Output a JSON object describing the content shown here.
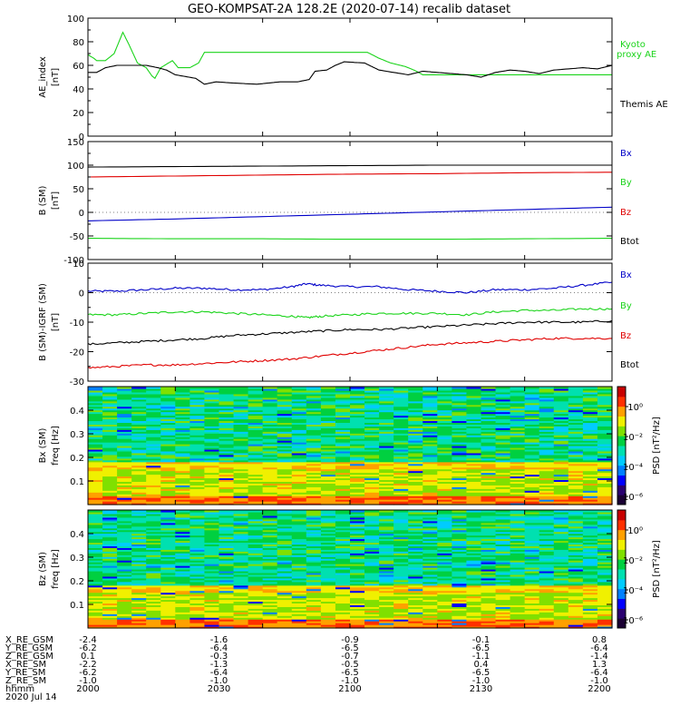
{
  "title": "GEO-KOMPSAT-2A 128.2E (2020-07-14) recalib dataset",
  "colors": {
    "black": "#000000",
    "red": "#e00000",
    "green": "#1bd41b",
    "blue": "#0000c8",
    "kyoto": "#1bd41b",
    "colorbar": [
      "#1a0033",
      "#2a0070",
      "#0000ff",
      "#0080ff",
      "#00ccff",
      "#00e0b0",
      "#00d040",
      "#80e000",
      "#f0f000",
      "#ffa000",
      "#ff3000",
      "#c80000"
    ]
  },
  "chart_data": [
    {
      "type": "line",
      "id": "ae",
      "ylabel": "AE_index [nT]",
      "ylim": [
        0,
        100
      ],
      "yticks": [
        "0",
        "20",
        "40",
        "60",
        "80",
        "100"
      ],
      "legend": [
        {
          "label": "Kyoto proxy AE",
          "color": "#1bd41b"
        },
        {
          "label": "Themis AE",
          "color": "#000000"
        }
      ],
      "series": [
        {
          "name": "Kyoto proxy AE",
          "color": "#1bd41b",
          "x": [
            0,
            2,
            3,
            6,
            9,
            12,
            14,
            17,
            20,
            22,
            23,
            25,
            29,
            31,
            35,
            38,
            40,
            48,
            70,
            82,
            96,
            100,
            104,
            109,
            112,
            115,
            120,
            150,
            160,
            180
          ],
          "y": [
            69,
            66,
            64,
            64,
            70,
            88,
            78,
            62,
            58,
            51,
            49,
            58,
            64,
            58,
            58,
            62,
            71,
            71,
            71,
            71,
            71,
            66,
            62,
            59,
            56,
            52,
            52,
            52,
            52,
            52
          ]
        },
        {
          "name": "Themis AE",
          "color": "#000000",
          "x": [
            0,
            3,
            6,
            10,
            13,
            20,
            24,
            27,
            30,
            37,
            40,
            44,
            50,
            58,
            62,
            66,
            72,
            76,
            78,
            82,
            85,
            88,
            95,
            100,
            110,
            115,
            120,
            125,
            130,
            135,
            140,
            145,
            150,
            155,
            160,
            170,
            175,
            180
          ],
          "y": [
            54,
            54,
            58,
            60,
            60,
            60,
            58,
            56,
            52,
            49,
            44,
            46,
            45,
            44,
            45,
            46,
            46,
            48,
            55,
            56,
            60,
            63,
            62,
            56,
            52,
            55,
            54,
            53,
            52,
            50,
            54,
            56,
            55,
            53,
            56,
            58,
            57,
            60
          ]
        }
      ]
    },
    {
      "type": "line",
      "id": "bsm",
      "ylabel": "B (SM) [nT]",
      "ylim": [
        -100,
        150
      ],
      "yticks": [
        "-100",
        "-50",
        "0",
        "50",
        "100",
        "150"
      ],
      "legend": [
        {
          "label": "Bx",
          "color": "#0000c8"
        },
        {
          "label": "By",
          "color": "#1bd41b"
        },
        {
          "label": "Bz",
          "color": "#e00000"
        },
        {
          "label": "Btot",
          "color": "#000000"
        }
      ],
      "series": [
        {
          "name": "Btot",
          "color": "#000000",
          "x": [
            0,
            30,
            60,
            90,
            120,
            150,
            180
          ],
          "y": [
            96,
            97,
            98,
            99,
            100,
            100,
            100
          ]
        },
        {
          "name": "Bz",
          "color": "#e00000",
          "x": [
            0,
            30,
            60,
            90,
            120,
            150,
            180
          ],
          "y": [
            75,
            77,
            79,
            81,
            82,
            84,
            85
          ]
        },
        {
          "name": "Bx",
          "color": "#0000c8",
          "x": [
            0,
            30,
            60,
            90,
            120,
            150,
            180
          ],
          "y": [
            -18,
            -14,
            -9,
            -4,
            1,
            6,
            11
          ]
        },
        {
          "name": "By",
          "color": "#1bd41b",
          "x": [
            0,
            30,
            60,
            90,
            120,
            150,
            180
          ],
          "y": [
            -55,
            -56,
            -56,
            -57,
            -57,
            -56,
            -55
          ]
        }
      ]
    },
    {
      "type": "line",
      "id": "bdiff",
      "ylabel": "B (SM)-IGRF (SM) [nT]",
      "ylim": [
        -30,
        10
      ],
      "yticks": [
        "-30",
        "-20",
        "-10",
        "0",
        "10"
      ],
      "legend": [
        {
          "label": "Bx",
          "color": "#0000c8"
        },
        {
          "label": "By",
          "color": "#1bd41b"
        },
        {
          "label": "Bz",
          "color": "#e00000"
        },
        {
          "label": "Btot",
          "color": "#000000"
        }
      ],
      "series": [
        {
          "name": "Bx",
          "color": "#0000c8",
          "x": [
            0,
            10,
            20,
            30,
            40,
            50,
            60,
            70,
            75,
            80,
            90,
            100,
            110,
            120,
            130,
            140,
            150,
            160,
            170,
            180
          ],
          "y": [
            0.5,
            0.5,
            1,
            1.5,
            1.5,
            1,
            1,
            2,
            3,
            2.5,
            2,
            2,
            1,
            0.5,
            0,
            1,
            1,
            1.5,
            2.5,
            3.5
          ]
        },
        {
          "name": "By",
          "color": "#1bd41b",
          "x": [
            0,
            10,
            20,
            30,
            40,
            50,
            60,
            70,
            75,
            80,
            90,
            100,
            110,
            120,
            130,
            140,
            150,
            160,
            170,
            180
          ],
          "y": [
            -7.5,
            -7.5,
            -7,
            -6.5,
            -6.5,
            -7,
            -7.5,
            -8,
            -8.5,
            -8,
            -7.5,
            -7,
            -7,
            -7,
            -7.5,
            -6.5,
            -6,
            -6,
            -5.5,
            -5.5
          ]
        },
        {
          "name": "Btot",
          "color": "#000000",
          "x": [
            0,
            10,
            20,
            30,
            40,
            50,
            60,
            70,
            80,
            90,
            100,
            110,
            120,
            130,
            140,
            150,
            160,
            170,
            180
          ],
          "y": [
            -17.5,
            -17,
            -16.5,
            -16,
            -15.5,
            -14.5,
            -14,
            -13.5,
            -13,
            -12.5,
            -12.5,
            -12,
            -11.5,
            -11,
            -10.5,
            -10,
            -10,
            -10,
            -9.5
          ]
        },
        {
          "name": "Bz",
          "color": "#e00000",
          "x": [
            0,
            10,
            20,
            30,
            40,
            50,
            60,
            70,
            80,
            90,
            100,
            110,
            120,
            130,
            140,
            150,
            160,
            170,
            180
          ],
          "y": [
            -25.5,
            -25,
            -24.5,
            -24.5,
            -24,
            -23.5,
            -23,
            -22.5,
            -21.5,
            -20.5,
            -19.5,
            -18.5,
            -17.5,
            -17,
            -16.5,
            -16,
            -15.5,
            -15.5,
            -15.5
          ]
        }
      ]
    },
    {
      "type": "heatmap",
      "id": "bx-spec",
      "ylabel": "Bx (SM) freq [Hz]",
      "ylim": [
        0,
        0.5
      ],
      "yticks": [
        "0.1",
        "0.2",
        "0.3",
        "0.4"
      ],
      "colorbar_label": "PSD [nT²/Hz]",
      "colorbar_ticks": [
        "10⁰",
        "10⁻²",
        "10⁻⁴",
        "10⁻⁶"
      ]
    },
    {
      "type": "heatmap",
      "id": "bz-spec",
      "ylabel": "Bz (SM) freq [Hz]",
      "ylim": [
        0,
        0.5
      ],
      "yticks": [
        "0.1",
        "0.2",
        "0.3",
        "0.4"
      ],
      "colorbar_label": "PSD [nT²/Hz]",
      "colorbar_ticks": [
        "10⁰",
        "10⁻²",
        "10⁻⁴",
        "10⁻⁶"
      ]
    }
  ],
  "x_axis": {
    "columns": [
      {
        "X_RE_GSM": "-2.4",
        "Y_RE_GSM": "-6.2",
        "Z_RE_GSM": "0.1",
        "X_RE_SM": "-2.2",
        "Y_RE_SM": "-6.2",
        "Z_RE_SM": "-1.0",
        "hhmm": "2000"
      },
      {
        "X_RE_GSM": "-1.6",
        "Y_RE_GSM": "-6.4",
        "Z_RE_GSM": "-0.3",
        "X_RE_SM": "-1.3",
        "Y_RE_SM": "-6.4",
        "Z_RE_SM": "-1.0",
        "hhmm": "2030"
      },
      {
        "X_RE_GSM": "-0.9",
        "Y_RE_GSM": "-6.5",
        "Z_RE_GSM": "-0.7",
        "X_RE_SM": "-0.5",
        "Y_RE_SM": "-6.5",
        "Z_RE_SM": "-1.0",
        "hhmm": "2100"
      },
      {
        "X_RE_GSM": "-0.1",
        "Y_RE_GSM": "-6.5",
        "Z_RE_GSM": "-1.1",
        "X_RE_SM": "0.4",
        "Y_RE_SM": "-6.5",
        "Z_RE_SM": "-1.0",
        "hhmm": "2130"
      },
      {
        "X_RE_GSM": "0.8",
        "Y_RE_GSM": "-6.4",
        "Z_RE_GSM": "-1.4",
        "X_RE_SM": "1.3",
        "Y_RE_SM": "-6.4",
        "Z_RE_SM": "-1.0",
        "hhmm": "2200"
      }
    ],
    "row_labels": [
      "X_RE_GSM",
      "Y_RE_GSM",
      "Z_RE_GSM",
      "X_RE_SM",
      "Y_RE_SM",
      "Z_RE_SM",
      "hhmm"
    ],
    "date": "2020 Jul 14"
  }
}
